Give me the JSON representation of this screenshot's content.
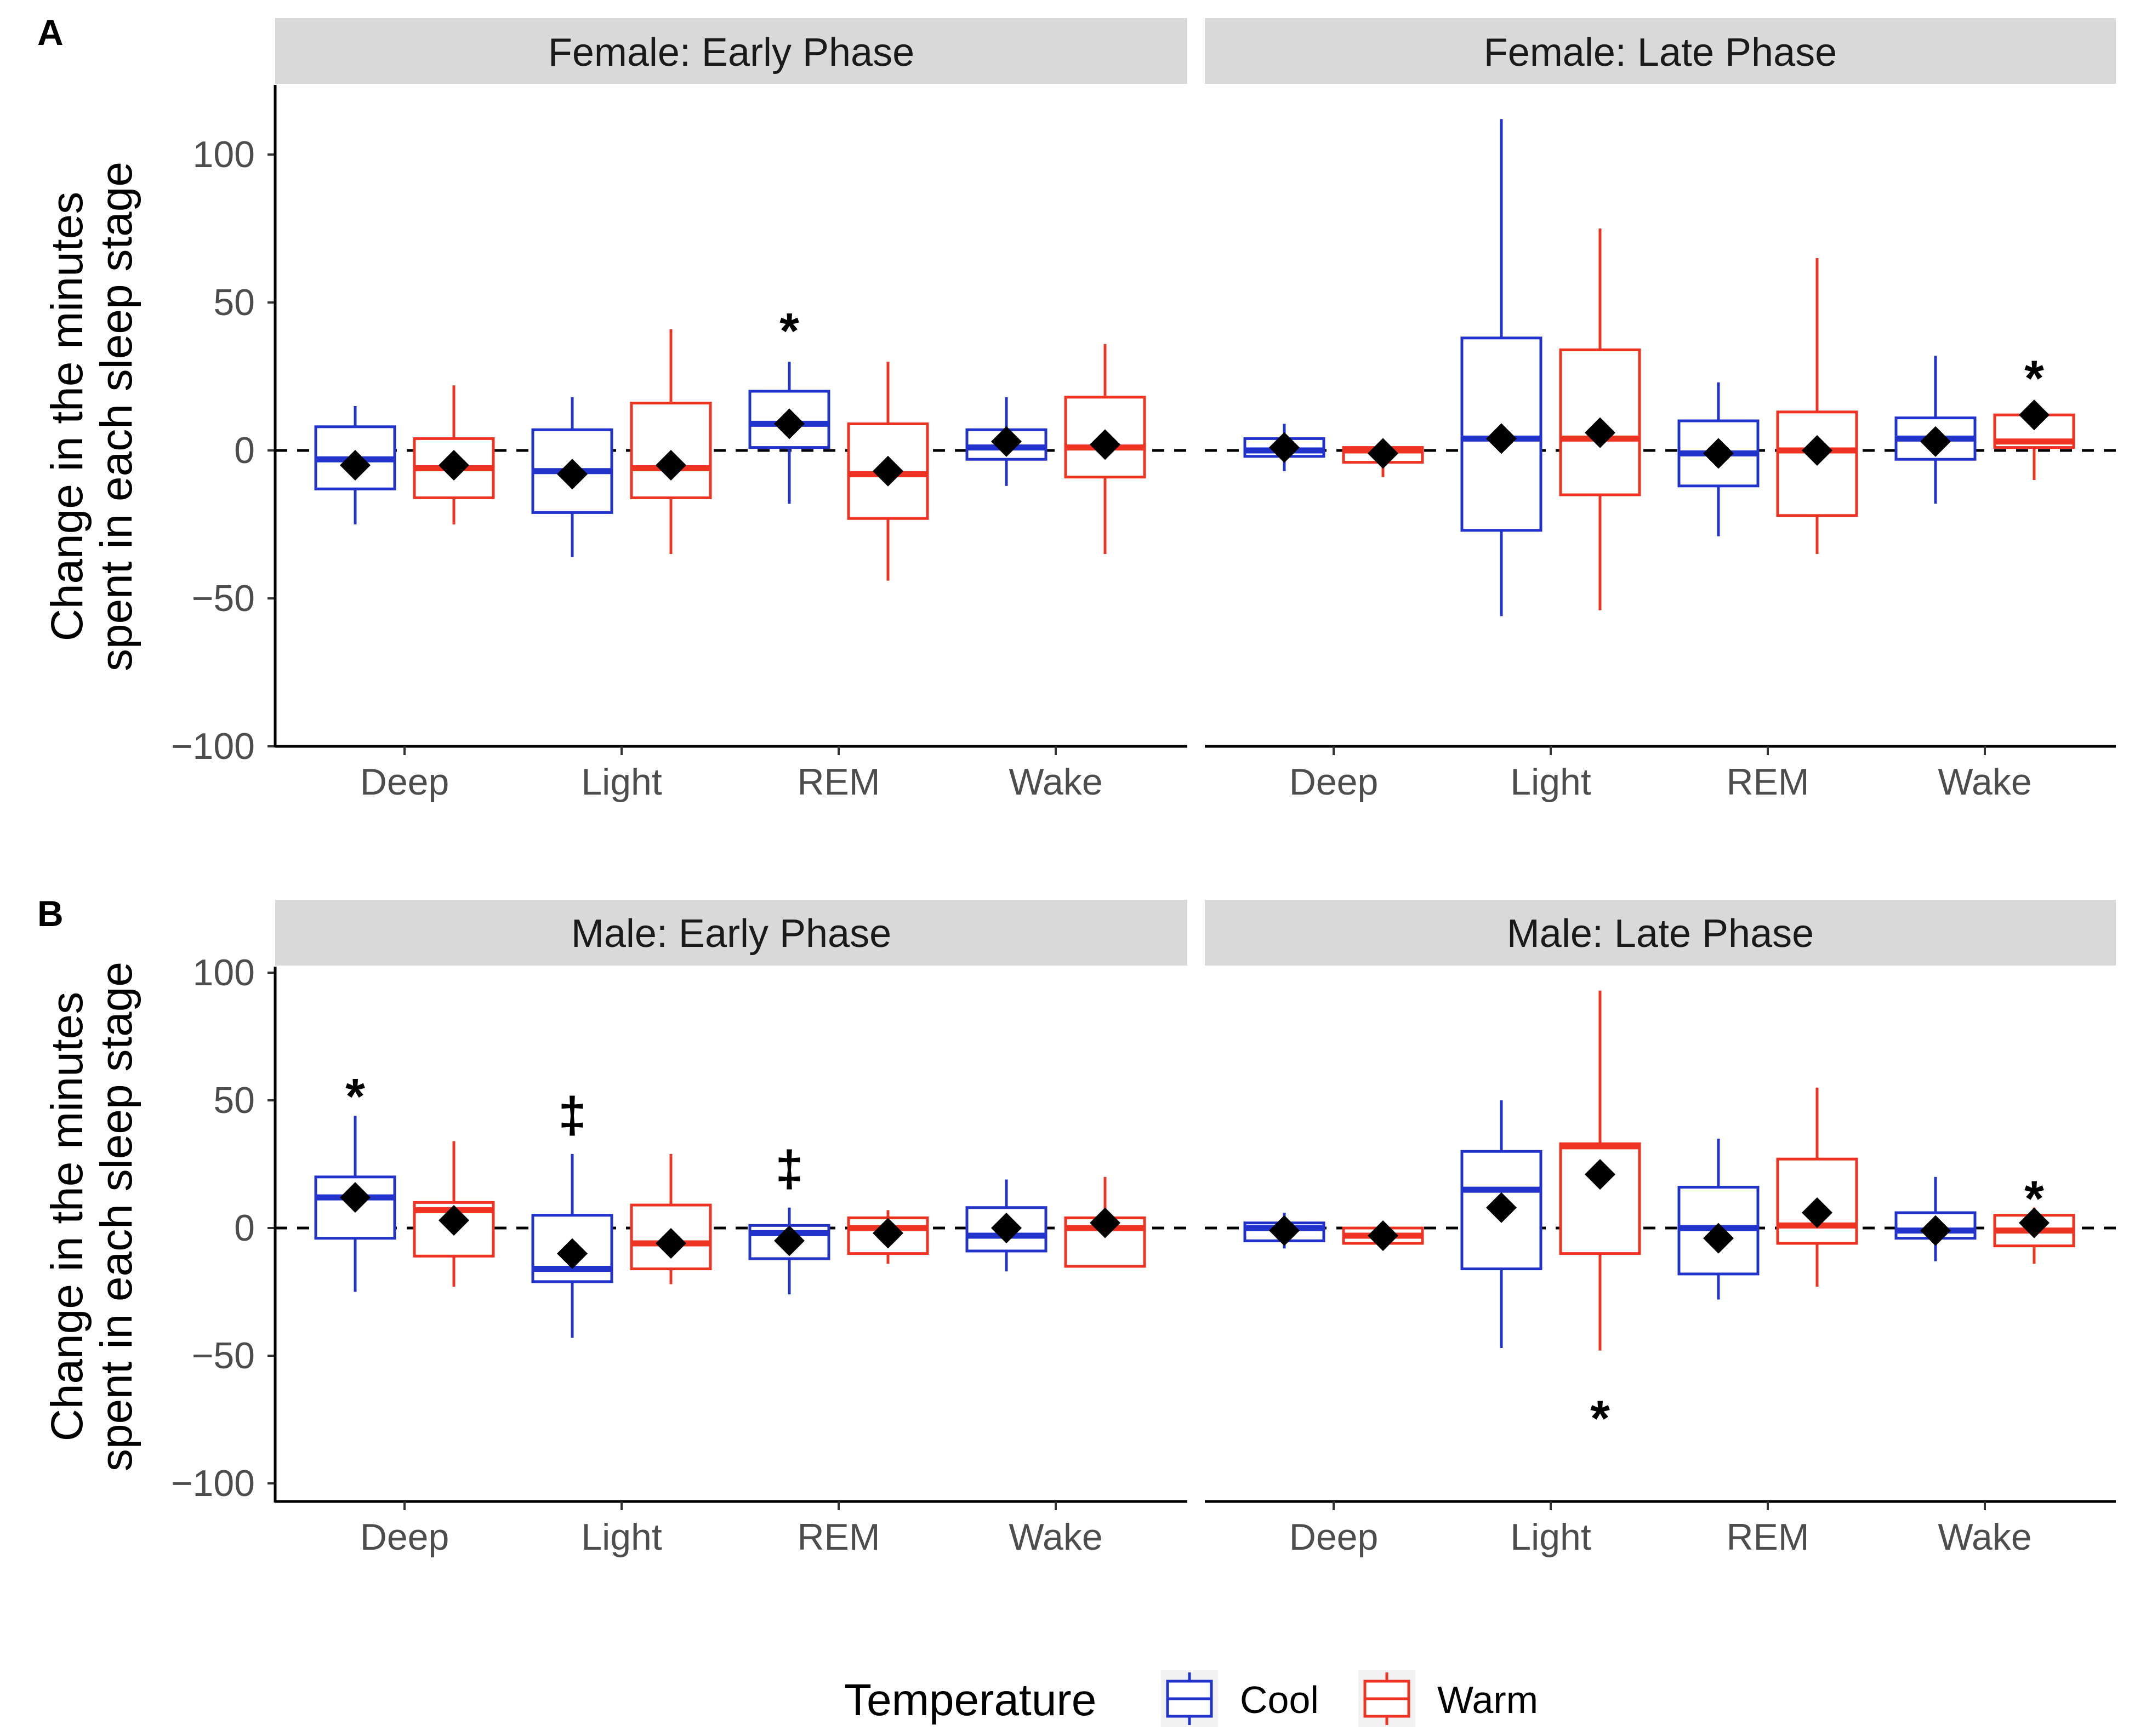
{
  "chart_data": {
    "type": "boxplot",
    "ylabel_line1": "Change in the minutes",
    "ylabel_line2": "spent in each sleep stage",
    "ylim": [
      -100,
      100
    ],
    "yticks": [
      100,
      50,
      0,
      -50,
      -100
    ],
    "ytick_labels": [
      "100",
      "50",
      "0",
      "−50",
      "−100"
    ],
    "categories": [
      "Deep",
      "Light",
      "REM",
      "Wake"
    ],
    "reference_line": 0,
    "legend": {
      "title": "Temperature",
      "entries": [
        {
          "name": "Cool",
          "color": "#2233cc"
        },
        {
          "name": "Warm",
          "color": "#ee3322"
        }
      ]
    },
    "mean_marker_color": "#000000",
    "rows": [
      {
        "label": "A",
        "ylim": [
          -100,
          122
        ],
        "panels": [
          {
            "title": "Female: Early Phase",
            "boxes": [
              {
                "category": "Deep",
                "group": "Cool",
                "whisker_low": -25,
                "q1": -13,
                "median": -3,
                "q3": 8,
                "whisker_high": 15,
                "mean": -5
              },
              {
                "category": "Deep",
                "group": "Warm",
                "whisker_low": -25,
                "q1": -16,
                "median": -6,
                "q3": 4,
                "whisker_high": 22,
                "mean": -5
              },
              {
                "category": "Light",
                "group": "Cool",
                "whisker_low": -36,
                "q1": -21,
                "median": -7,
                "q3": 7,
                "whisker_high": 18,
                "mean": -8
              },
              {
                "category": "Light",
                "group": "Warm",
                "whisker_low": -35,
                "q1": -16,
                "median": -6,
                "q3": 16,
                "whisker_high": 41,
                "mean": -5
              },
              {
                "category": "REM",
                "group": "Cool",
                "whisker_low": -18,
                "q1": 1,
                "median": 9,
                "q3": 20,
                "whisker_high": 30,
                "mean": 9
              },
              {
                "category": "REM",
                "group": "Warm",
                "whisker_low": -44,
                "q1": -23,
                "median": -8,
                "q3": 9,
                "whisker_high": 30,
                "mean": -7
              },
              {
                "category": "Wake",
                "group": "Cool",
                "whisker_low": -12,
                "q1": -3,
                "median": 1,
                "q3": 7,
                "whisker_high": 18,
                "mean": 3
              },
              {
                "category": "Wake",
                "group": "Warm",
                "whisker_low": -35,
                "q1": -9,
                "median": 1,
                "q3": 18,
                "whisker_high": 36,
                "mean": 2
              }
            ],
            "annotations": [
              {
                "category": "REM",
                "group": "Cool",
                "symbol": "*",
                "value": 46
              }
            ]
          },
          {
            "title": "Female: Late Phase",
            "boxes": [
              {
                "category": "Deep",
                "group": "Cool",
                "whisker_low": -7,
                "q1": -2,
                "median": 0,
                "q3": 4,
                "whisker_high": 9,
                "mean": 1
              },
              {
                "category": "Deep",
                "group": "Warm",
                "whisker_low": -9,
                "q1": -4,
                "median": 0,
                "q3": 1,
                "whisker_high": 3,
                "mean": -1
              },
              {
                "category": "Light",
                "group": "Cool",
                "whisker_low": -56,
                "q1": -27,
                "median": 4,
                "q3": 38,
                "whisker_high": 112,
                "mean": 4
              },
              {
                "category": "Light",
                "group": "Warm",
                "whisker_low": -54,
                "q1": -15,
                "median": 4,
                "q3": 34,
                "whisker_high": 75,
                "mean": 6
              },
              {
                "category": "REM",
                "group": "Cool",
                "whisker_low": -29,
                "q1": -12,
                "median": -1,
                "q3": 10,
                "whisker_high": 23,
                "mean": -1
              },
              {
                "category": "REM",
                "group": "Warm",
                "whisker_low": -35,
                "q1": -22,
                "median": 0,
                "q3": 13,
                "whisker_high": 65,
                "mean": 0
              },
              {
                "category": "Wake",
                "group": "Cool",
                "whisker_low": -18,
                "q1": -3,
                "median": 4,
                "q3": 11,
                "whisker_high": 32,
                "mean": 3
              },
              {
                "category": "Wake",
                "group": "Warm",
                "whisker_low": -10,
                "q1": 1,
                "median": 3,
                "q3": 12,
                "whisker_high": 12,
                "mean": 12
              }
            ],
            "annotations": [
              {
                "category": "Wake",
                "group": "Warm",
                "symbol": "*",
                "value": 30
              }
            ]
          }
        ]
      },
      {
        "label": "B",
        "ylim": [
          -100,
          100
        ],
        "panels": [
          {
            "title": "Male: Early Phase",
            "boxes": [
              {
                "category": "Deep",
                "group": "Cool",
                "whisker_low": -25,
                "q1": -4,
                "median": 12,
                "q3": 20,
                "whisker_high": 44,
                "mean": 12
              },
              {
                "category": "Deep",
                "group": "Warm",
                "whisker_low": -23,
                "q1": -11,
                "median": 7,
                "q3": 10,
                "whisker_high": 34,
                "mean": 3
              },
              {
                "category": "Light",
                "group": "Cool",
                "whisker_low": -43,
                "q1": -21,
                "median": -16,
                "q3": 5,
                "whisker_high": 29,
                "mean": -10
              },
              {
                "category": "Light",
                "group": "Warm",
                "whisker_low": -22,
                "q1": -16,
                "median": -6,
                "q3": 9,
                "whisker_high": 29,
                "mean": -6
              },
              {
                "category": "REM",
                "group": "Cool",
                "whisker_low": -26,
                "q1": -12,
                "median": -2,
                "q3": 1,
                "whisker_high": 8,
                "mean": -5
              },
              {
                "category": "REM",
                "group": "Warm",
                "whisker_low": -14,
                "q1": -10,
                "median": 0,
                "q3": 4,
                "whisker_high": 7,
                "mean": -2
              },
              {
                "category": "Wake",
                "group": "Cool",
                "whisker_low": -17,
                "q1": -9,
                "median": -3,
                "q3": 8,
                "whisker_high": 19,
                "mean": 0
              },
              {
                "category": "Wake",
                "group": "Warm",
                "whisker_low": -15,
                "q1": -15,
                "median": 0,
                "q3": 4,
                "whisker_high": 20,
                "mean": 2
              }
            ],
            "annotations": [
              {
                "category": "Deep",
                "group": "Cool",
                "symbol": "*",
                "value": 58
              },
              {
                "category": "Light",
                "group": "Cool",
                "symbol": "‡",
                "value": 44
              },
              {
                "category": "REM",
                "group": "Cool",
                "symbol": "‡",
                "value": 23
              }
            ]
          },
          {
            "title": "Male: Late Phase",
            "boxes": [
              {
                "category": "Deep",
                "group": "Cool",
                "whisker_low": -8,
                "q1": -5,
                "median": 0,
                "q3": 2,
                "whisker_high": 6,
                "mean": -1
              },
              {
                "category": "Deep",
                "group": "Warm",
                "whisker_low": -6,
                "q1": -6,
                "median": -3,
                "q3": 0,
                "whisker_high": 0,
                "mean": -3
              },
              {
                "category": "Light",
                "group": "Cool",
                "whisker_low": -47,
                "q1": -16,
                "median": 15,
                "q3": 30,
                "whisker_high": 50,
                "mean": 8
              },
              {
                "category": "Light",
                "group": "Warm",
                "whisker_low": -48,
                "q1": -10,
                "median": 32,
                "q3": 33,
                "whisker_high": 93,
                "mean": 21
              },
              {
                "category": "REM",
                "group": "Cool",
                "whisker_low": -28,
                "q1": -18,
                "median": 0,
                "q3": 16,
                "whisker_high": 35,
                "mean": -4
              },
              {
                "category": "REM",
                "group": "Warm",
                "whisker_low": -23,
                "q1": -6,
                "median": 1,
                "q3": 27,
                "whisker_high": 55,
                "mean": 6
              },
              {
                "category": "Wake",
                "group": "Cool",
                "whisker_low": -13,
                "q1": -4,
                "median": -1,
                "q3": 6,
                "whisker_high": 20,
                "mean": -1
              },
              {
                "category": "Wake",
                "group": "Warm",
                "whisker_low": -14,
                "q1": -7,
                "median": -1,
                "q3": 5,
                "whisker_high": 8,
                "mean": 2
              }
            ],
            "annotations": [
              {
                "category": "Wake",
                "group": "Warm",
                "symbol": "*",
                "value": 18
              },
              {
                "category": "Light",
                "group": "Warm",
                "symbol": "*",
                "value": -68
              }
            ]
          }
        ]
      }
    ]
  }
}
